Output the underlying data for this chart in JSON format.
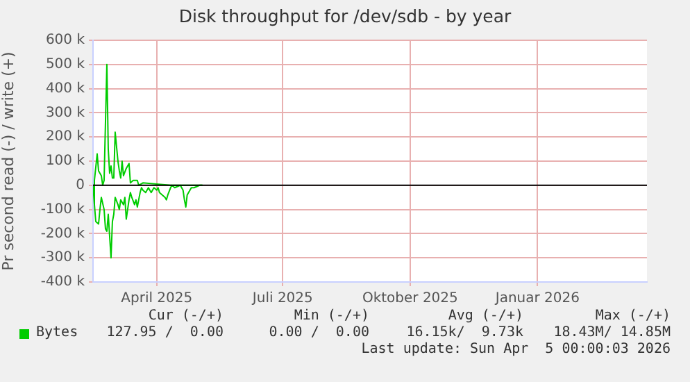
{
  "chart_data": {
    "type": "line",
    "title": "Disk throughput for /dev/sdb - by year",
    "ylabel": "Pr second read (-) / write (+)",
    "series": [
      {
        "name": "Bytes",
        "color": "#00cc00",
        "x": [
          "2025-03-01",
          "2025-03-02",
          "2025-03-04",
          "2025-03-05",
          "2025-03-07",
          "2025-03-08",
          "2025-03-09",
          "2025-03-11",
          "2025-03-12",
          "2025-03-13",
          "2025-03-14",
          "2025-03-15",
          "2025-03-16",
          "2025-03-17",
          "2025-03-19",
          "2025-03-20",
          "2025-03-21",
          "2025-03-22",
          "2025-03-23",
          "2025-03-25",
          "2025-03-26",
          "2025-03-27",
          "2025-03-28",
          "2025-03-30",
          "2025-03-31",
          "2025-04-02",
          "2025-04-03",
          "2025-04-06",
          "2025-04-16",
          "2025-04-26",
          "2025-05-19"
        ],
        "values": [
          0,
          20000,
          130000,
          60000,
          40000,
          0,
          20000,
          500000,
          150000,
          50000,
          80000,
          30000,
          30000,
          220000,
          100000,
          60000,
          30000,
          100000,
          40000,
          70000,
          80000,
          90000,
          10000,
          20000,
          20000,
          20000,
          0,
          10000,
          5000,
          0,
          0
        ]
      },
      {
        "color": "#00cc00",
        "x": [
          "2025-03-01",
          "2025-03-02",
          "2025-03-03",
          "2025-03-05",
          "2025-03-06",
          "2025-03-07",
          "2025-03-09",
          "2025-03-10",
          "2025-03-11",
          "2025-03-12",
          "2025-03-14",
          "2025-03-15",
          "2025-03-16",
          "2025-03-17",
          "2025-03-19",
          "2025-03-20",
          "2025-03-21",
          "2025-03-23",
          "2025-03-24",
          "2025-03-25",
          "2025-03-27",
          "2025-03-28",
          "2025-03-29",
          "2025-03-31",
          "2025-04-01",
          "2025-04-02",
          "2025-04-04",
          "2025-04-05",
          "2025-04-06",
          "2025-04-08",
          "2025-04-09",
          "2025-04-10",
          "2025-04-12",
          "2025-04-13",
          "2025-04-14",
          "2025-04-16",
          "2025-04-17",
          "2025-04-18",
          "2025-04-20",
          "2025-04-22",
          "2025-04-23",
          "2025-04-24",
          "2025-04-26",
          "2025-04-27",
          "2025-04-29",
          "2025-05-01",
          "2025-05-03",
          "2025-05-05",
          "2025-05-06",
          "2025-05-07",
          "2025-05-08",
          "2025-05-10",
          "2025-05-11",
          "2025-05-13",
          "2025-05-15",
          "2025-05-17",
          "2025-05-19"
        ],
        "values": [
          0,
          -80000,
          -150000,
          -160000,
          -100000,
          -50000,
          -100000,
          -180000,
          -190000,
          -120000,
          -300000,
          -150000,
          -120000,
          -50000,
          -80000,
          -100000,
          -60000,
          -80000,
          -50000,
          -140000,
          -60000,
          -30000,
          -50000,
          -80000,
          -60000,
          -90000,
          -30000,
          -10000,
          -20000,
          -30000,
          -20000,
          -10000,
          -30000,
          -20000,
          -10000,
          -20000,
          -10000,
          -30000,
          -40000,
          -50000,
          -60000,
          -40000,
          -10000,
          0,
          -10000,
          -5000,
          0,
          -20000,
          -60000,
          -90000,
          -40000,
          -20000,
          -10000,
          -10000,
          -5000,
          0,
          0
        ]
      }
    ],
    "xlim": [
      "2025-03-01",
      "2026-04-05"
    ],
    "xticks": [
      {
        "value": "2025-04-16",
        "label": "April 2025"
      },
      {
        "value": "2025-07-16",
        "label": "Juli 2025"
      },
      {
        "value": "2025-10-16",
        "label": "Oktober 2025"
      },
      {
        "value": "2026-01-16",
        "label": "Januar 2026"
      }
    ],
    "ylim": [
      -400000,
      600000
    ],
    "yticks": [
      {
        "value": -400000,
        "label": "-400 k"
      },
      {
        "value": -300000,
        "label": "-300 k"
      },
      {
        "value": -200000,
        "label": "-200 k"
      },
      {
        "value": -100000,
        "label": "-100 k"
      },
      {
        "value": 0,
        "label": "0"
      },
      {
        "value": 100000,
        "label": "100 k"
      },
      {
        "value": 200000,
        "label": "200 k"
      },
      {
        "value": 300000,
        "label": "300 k"
      },
      {
        "value": 400000,
        "label": "400 k"
      },
      {
        "value": 500000,
        "label": "500 k"
      },
      {
        "value": 600000,
        "label": "600 k"
      }
    ],
    "ref_lines": [
      {
        "axis": "y",
        "value": 0,
        "color": "#000000"
      }
    ],
    "grid": true,
    "legend": "bottom",
    "marker": "none",
    "line_style": "solid",
    "annotations": [
      "Cur (-/+)",
      "Min (-/+)",
      "Avg (-/+)",
      "Max (-/+)",
      "127.95 /  0.00",
      "0.00 /  0.00",
      "16.15k/  9.73k",
      "18.43M/ 14.85M",
      "Last update: Sun Apr  5 00:00:03 2026"
    ]
  }
}
